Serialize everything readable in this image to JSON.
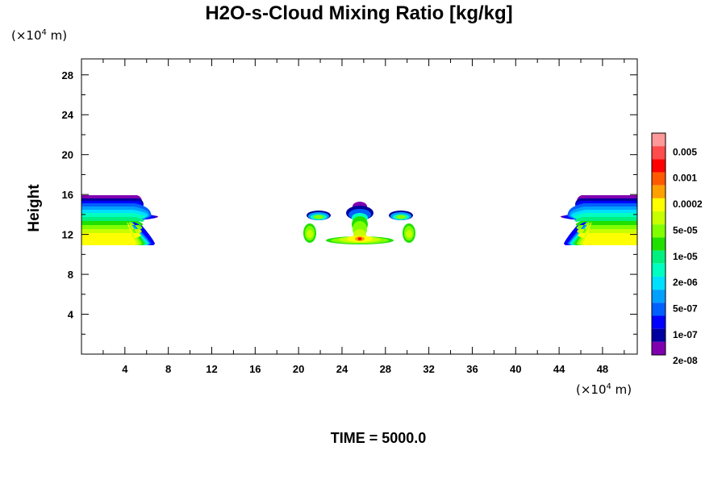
{
  "chart_data": {
    "type": "heatmap",
    "title": "H2O-s-Cloud Mixing Ratio [kg/kg]",
    "xunit": {
      "prefix": "(×10",
      "exp": "4",
      "suffix": " m)"
    },
    "yunit": {
      "prefix": "(×10",
      "exp": "4",
      "suffix": " m)"
    },
    "ylabel": "Height",
    "xlim": [
      0,
      51.2
    ],
    "ylim": [
      0,
      29.6
    ],
    "xticks": [
      "4",
      "8",
      "12",
      "16",
      "20",
      "24",
      "28",
      "32",
      "36",
      "40",
      "44",
      "48"
    ],
    "yticks": [
      "4",
      "8",
      "12",
      "16",
      "20",
      "24",
      "28"
    ],
    "footer": "TIME = 5000.0",
    "colorbar": {
      "labels": [
        "0.005",
        "0.001",
        "0.0002",
        "5e-05",
        "1e-05",
        "2e-06",
        "5e-07",
        "1e-07",
        "2e-08"
      ],
      "colors_top_to_bottom": [
        "#ff9999",
        "#ff4c4c",
        "#ff0000",
        "#ff5a00",
        "#ffa000",
        "#ffff00",
        "#c8ff00",
        "#80ff00",
        "#20e000",
        "#00f080",
        "#00ffc0",
        "#00e0ff",
        "#00a0ff",
        "#0060ff",
        "#0000ff",
        "#0000a0",
        "#8000b0"
      ]
    },
    "cloud_regions": [
      {
        "name": "left-edge-cloud",
        "x_range": [
          0,
          7
        ],
        "z_range": [
          11.0,
          16.0
        ]
      },
      {
        "name": "center-cloud",
        "x_range": [
          20,
          31
        ],
        "z_range": [
          11.0,
          15.5
        ]
      },
      {
        "name": "right-edge-cloud",
        "x_range": [
          44,
          51.2
        ],
        "z_range": [
          11.0,
          16.0
        ]
      }
    ]
  }
}
